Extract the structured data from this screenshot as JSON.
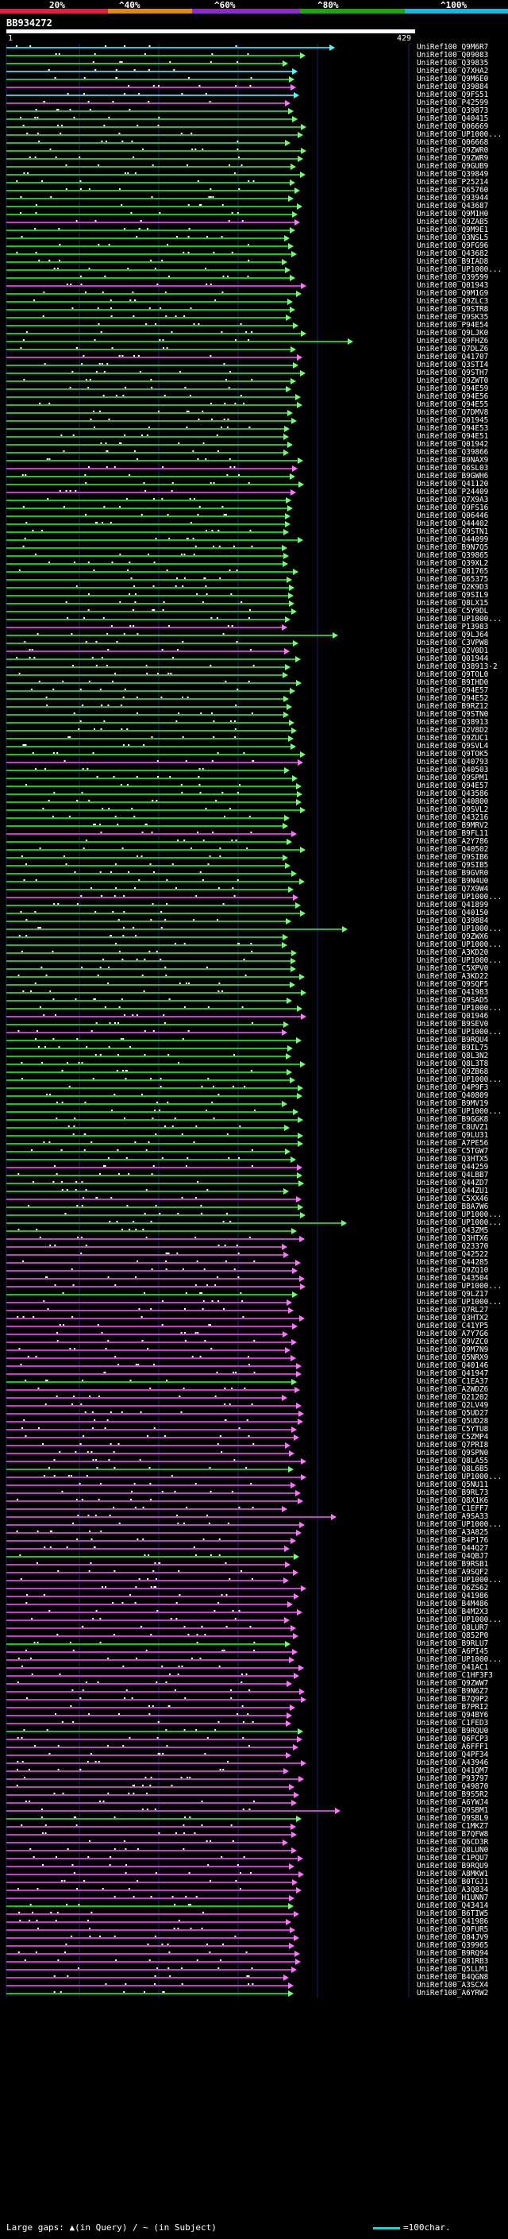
{
  "legend": {
    "ticks": [
      "20%",
      "^40%",
      "^60%",
      "^80%",
      "^100%"
    ],
    "colors": [
      "#e0203c",
      "#d98b17",
      "#8c2bc8",
      "#1aa61a",
      "#19b8d6"
    ]
  },
  "query": {
    "id": "BB934272",
    "start": "1",
    "end": "429"
  },
  "colors": {
    "cyan": "#2fc7d8",
    "green": "#22c022",
    "magenta": "#c040c0",
    "grid": "#1a2a6a",
    "arrow_cyan": "#5ff",
    "arrow_green": "#7f7",
    "arrow_magenta": "#f7f"
  },
  "hits": [
    "UniRef100_Q9M6R7",
    "UniRef100_Q09083",
    "UniRef100_Q39835",
    "UniRef100_Q7XHA2",
    "UniRef100_Q9M6E0",
    "UniRef100_Q39884",
    "UniRef100_Q9FS51",
    "UniRef100_P42599",
    "UniRef100_Q39873",
    "UniRef100_Q40415",
    "UniRef100_Q06669",
    "UniRef100_UP1000...",
    "UniRef100_Q06668",
    "UniRef100_Q9ZWR0",
    "UniRef100_Q9ZWR9",
    "UniRef100_Q9GUB9",
    "UniRef100_Q39849",
    "UniRef100_P25214",
    "UniRef100_Q65760",
    "UniRef100_Q93944",
    "UniRef100_Q43687",
    "UniRef100_Q9M1H0",
    "UniRef100_Q9ZAB5",
    "UniRef100_Q9M9E1",
    "UniRef100_Q3NSL5",
    "UniRef100_Q9FG96",
    "UniRef100_Q43682",
    "UniRef100_B9IAD8",
    "UniRef100_UP1000...",
    "UniRef100_Q39599",
    "UniRef100_Q01943",
    "UniRef100_Q9M1G9",
    "UniRef100_Q9ZLC3",
    "UniRef100_Q9STR8",
    "UniRef100_Q9SK35",
    "UniRef100_P94E54",
    "UniRef100_Q9LJK0",
    "UniRef100_Q9FHZ6",
    "UniRef100_Q7DLZ6",
    "UniRef100_Q41707",
    "UniRef100_Q3STI4",
    "UniRef100_Q9STH7",
    "UniRef100_Q9ZWT0",
    "UniRef100_Q94E59",
    "UniRef100_Q94E56",
    "UniRef100_Q94E55",
    "UniRef100_Q7DMV8",
    "UniRef100_Q01945",
    "UniRef100_Q94E53",
    "UniRef100_Q94E51",
    "UniRef100_Q01942",
    "UniRef100_Q39866",
    "UniRef100_B9NAX9",
    "UniRef100_Q6SL03",
    "UniRef100_B9GWH6",
    "UniRef100_Q41120",
    "UniRef100_P24409",
    "UniRef100_Q7X9A3",
    "UniRef100_Q9FS16",
    "UniRef100_Q06446",
    "UniRef100_Q44402",
    "UniRef100_Q9STN1",
    "UniRef100_Q44099",
    "UniRef100_B9N7Q5",
    "UniRef100_Q39865",
    "UniRef100_Q39XL2",
    "UniRef100_Q81765",
    "UniRef100_Q65375",
    "UniRef100_Q2K9D3",
    "UniRef100_Q9SIL9",
    "UniRef100_Q8LX15",
    "UniRef100_C5Y9DL",
    "UniRef100_UP1000...",
    "UniRef100_P13983",
    "UniRef100_Q9LJ64",
    "UniRef100_C3VPW8",
    "UniRef100_Q2V0D1",
    "UniRef100_Q01944",
    "UniRef100_Q38913-2",
    "UniRef100_Q9TOL0",
    "UniRef100_B9IHD0",
    "UniRef100_Q94E57",
    "UniRef100_Q94E52",
    "UniRef100_B9RZ12",
    "UniRef100_Q9STN0",
    "UniRef100_Q38913",
    "UniRef100_Q2V8D2",
    "UniRef100_Q9ZUC1",
    "UniRef100_Q9SVL4",
    "UniRef100_Q9TOK5",
    "UniRef100_Q40793",
    "UniRef100_Q40503",
    "UniRef100_Q9SPM1",
    "UniRef100_Q94E57",
    "UniRef100_Q43586",
    "UniRef100_Q40800",
    "UniRef100_Q9SVL2",
    "UniRef100_Q43216",
    "UniRef100_B9MRV2",
    "UniRef100_B9FL11",
    "UniRef100_A2Y786",
    "UniRef100_Q40502",
    "UniRef100_Q9SIB6",
    "UniRef100_Q9SIB5",
    "UniRef100_B9GVR0",
    "UniRef100_B9N4U0",
    "UniRef100_Q7X9W4",
    "UniRef100_UP1000...",
    "UniRef100_Q41899",
    "UniRef100_Q40150",
    "UniRef100_Q39884",
    "UniRef100_UP1000...",
    "UniRef100_Q9ZWX6",
    "UniRef100_UP1000...",
    "UniRef100_A3KD20",
    "UniRef100_UP1000...",
    "UniRef100_C5XPV0",
    "UniRef100_A3KD22",
    "UniRef100_Q9SQF5",
    "UniRef100_Q41983",
    "UniRef100_Q9SAD5",
    "UniRef100_UP1000...",
    "UniRef100_Q01946",
    "UniRef100_B9SEV0",
    "UniRef100_UP1000...",
    "UniRef100_B9RQU4",
    "UniRef100_B9IL75",
    "UniRef100_Q8L3N2",
    "UniRef100_Q8L3T8",
    "UniRef100_Q9ZB68",
    "UniRef100_UP1000...",
    "UniRef100_Q4P9F3",
    "UniRef100_Q40809",
    "UniRef100_B9MV19",
    "UniRef100_UP1000...",
    "UniRef100_B9GGK8",
    "UniRef100_C8UVZ1",
    "UniRef100_Q9LU31",
    "UniRef100_A7PE56",
    "UniRef100_C5TGW7",
    "UniRef100_Q3HTX5",
    "UniRef100_Q44259",
    "UniRef100_Q4LBB7",
    "UniRef100_Q44ZD7",
    "UniRef100_Q44ZU1",
    "UniRef100_C5XX46",
    "UniRef100_B8A7W6",
    "UniRef100_UP1000...",
    "UniRef100_UP1000...",
    "UniRef100_Q43ZM5",
    "UniRef100_Q3HTX6",
    "UniRef100_Q23370",
    "UniRef100_Q42522",
    "UniRef100_Q44285",
    "UniRef100_Q9ZQ10",
    "UniRef100_Q43504",
    "UniRef100_UP1000...",
    "UniRef100_Q9LZ17",
    "UniRef100_UP1000...",
    "UniRef100_Q7RL27",
    "UniRef100_Q3HTX2",
    "UniRef100_C41YP5",
    "UniRef100_A7Y7G6",
    "UniRef100_Q9VZC0",
    "UniRef100_Q9M7N9",
    "UniRef100_Q5NRX9",
    "UniRef100_Q40146",
    "UniRef100_Q41947",
    "UniRef100_C1EA37",
    "UniRef100_A2WDZ6",
    "UniRef100_Q21202",
    "UniRef100_Q2LV49",
    "UniRef100_Q5UD27",
    "UniRef100_Q5UD28",
    "UniRef100_C5YTU8",
    "UniRef100_C5ZMP4",
    "UniRef100_Q7PRI8",
    "UniRef100_Q9SPN0",
    "UniRef100_Q8LA55",
    "UniRef100_Q8L6B5",
    "UniRef100_UP1000...",
    "UniRef100_Q5NU11",
    "UniRef100_B9RL73",
    "UniRef100_Q8X1K6",
    "UniRef100_C1EFF7",
    "UniRef100_A9SA33",
    "UniRef100_UP1000...",
    "UniRef100_A3A825",
    "UniRef100_B4P176",
    "UniRef100_Q44Q27",
    "UniRef100_Q4QBJ7",
    "UniRef100_B9RSB1",
    "UniRef100_A9SQF2",
    "UniRef100_UP1000...",
    "UniRef100_Q6ZS62",
    "UniRef100_Q41986",
    "UniRef100_B4M486",
    "UniRef100_B4M2X3",
    "UniRef100_UP1000...",
    "UniRef100_Q8LUR7",
    "UniRef100_Q852P0",
    "UniRef100_B9RLU7",
    "UniRef100_A6PI45",
    "UniRef100_UP1000...",
    "UniRef100_Q41AC1",
    "UniRef100_C1HF3F3",
    "UniRef100_Q9ZWW7",
    "UniRef100_B9N6Z7",
    "UniRef100_B7Q9P2",
    "UniRef100_B7PRI2",
    "UniRef100_Q94BY6",
    "UniRef100_C1FED3",
    "UniRef100_B9RQU0",
    "UniRef100_Q6FCP3",
    "UniRef100_A6FFF1",
    "UniRef100_Q4PF34",
    "UniRef100_A43946",
    "UniRef100_Q41QM7",
    "UniRef100_P93797",
    "UniRef100_Q49870",
    "UniRef100_B9S5R2",
    "UniRef100_A6YWJ4",
    "UniRef100_Q9SBM1",
    "UniRef100_Q9SBL9",
    "UniRef100_C1MKZ7",
    "UniRef100_B7QFW8",
    "UniRef100_Q6CD3R",
    "UniRef100_Q8LUN0",
    "UniRef100_C1PQU7",
    "UniRef100_B9RQU9",
    "UniRef100_A8MKW1",
    "UniRef100_B0TGJ1",
    "UniRef100_A3Q834",
    "UniRef100_H1UNN7",
    "UniRef100_Q43414",
    "UniRef100_B6TIW5",
    "UniRef100_Q41986",
    "UniRef100_Q9FUR5",
    "UniRef100_Q84JV9",
    "UniRef100_Q39965",
    "UniRef100_B9RQ94",
    "UniRef100_Q81RB3",
    "UniRef100_Q5LLM1",
    "UniRef100_B4QGN8",
    "UniRef100_A3SCX4",
    "UniRef100_A6YRW2"
  ],
  "footer": {
    "left": "Large gaps: ▲(in Query) / ~ (in Subject)",
    "right": "=100char."
  }
}
